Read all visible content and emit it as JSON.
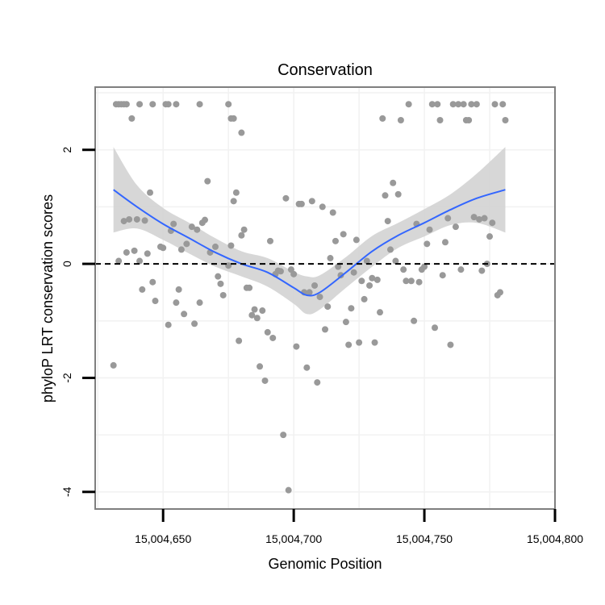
{
  "chart_data": {
    "type": "scatter",
    "title": "Conservation",
    "xlabel": "Genomic Position",
    "ylabel": "phyloP LRT conservation scores",
    "xlim": [
      15004624,
      15004800
    ],
    "ylim": [
      -4.3,
      3.1
    ],
    "x_ticks": [
      15004650,
      15004700,
      15004750,
      15004800
    ],
    "x_tick_labels": [
      "15,004,650",
      "15,004,700",
      "15,004,750",
      "15,004,800"
    ],
    "y_ticks": [
      -4,
      -2,
      0,
      2
    ],
    "y_tick_labels": [
      "-4",
      "-2",
      "0",
      "2"
    ],
    "reference_line": {
      "y": 0,
      "style": "dashed"
    },
    "legend": "none",
    "grid": true,
    "colors": {
      "points": "#999999",
      "smooth": "#3366FF",
      "ribbon": "#D3D3D3",
      "panel_border": "#7F7F7F",
      "grid": "#F2F2F2"
    },
    "points": [
      {
        "x": 15004632,
        "y": 2.8
      },
      {
        "x": 15004633,
        "y": 2.8
      },
      {
        "x": 15004634,
        "y": 2.8
      },
      {
        "x": 15004635,
        "y": 2.8
      },
      {
        "x": 15004636,
        "y": 2.8
      },
      {
        "x": 15004641,
        "y": 2.8
      },
      {
        "x": 15004646,
        "y": 2.8
      },
      {
        "x": 15004651,
        "y": 2.8
      },
      {
        "x": 15004652,
        "y": 2.8
      },
      {
        "x": 15004655,
        "y": 2.8
      },
      {
        "x": 15004664,
        "y": 2.8
      },
      {
        "x": 15004675,
        "y": 2.8
      },
      {
        "x": 15004638,
        "y": 2.55
      },
      {
        "x": 15004676,
        "y": 2.55
      },
      {
        "x": 15004677,
        "y": 2.55
      },
      {
        "x": 15004680,
        "y": 2.3
      },
      {
        "x": 15004631,
        "y": -1.78
      },
      {
        "x": 15004633,
        "y": 0.05
      },
      {
        "x": 15004635,
        "y": 0.75
      },
      {
        "x": 15004636,
        "y": 0.2
      },
      {
        "x": 15004637,
        "y": 0.78
      },
      {
        "x": 15004639,
        "y": 0.23
      },
      {
        "x": 15004640,
        "y": 0.78
      },
      {
        "x": 15004641,
        "y": 0.05
      },
      {
        "x": 15004642,
        "y": -0.45
      },
      {
        "x": 15004643,
        "y": 0.76
      },
      {
        "x": 15004644,
        "y": 0.18
      },
      {
        "x": 15004645,
        "y": 1.25
      },
      {
        "x": 15004646,
        "y": -0.32
      },
      {
        "x": 15004647,
        "y": -0.65
      },
      {
        "x": 15004649,
        "y": 0.3
      },
      {
        "x": 15004650,
        "y": 0.28
      },
      {
        "x": 15004652,
        "y": -1.07
      },
      {
        "x": 15004653,
        "y": 0.58
      },
      {
        "x": 15004654,
        "y": 0.7
      },
      {
        "x": 15004655,
        "y": -0.68
      },
      {
        "x": 15004656,
        "y": -0.45
      },
      {
        "x": 15004657,
        "y": 0.25
      },
      {
        "x": 15004658,
        "y": -0.88
      },
      {
        "x": 15004659,
        "y": 0.35
      },
      {
        "x": 15004661,
        "y": 0.65
      },
      {
        "x": 15004662,
        "y": -1.05
      },
      {
        "x": 15004663,
        "y": 0.6
      },
      {
        "x": 15004664,
        "y": -0.68
      },
      {
        "x": 15004665,
        "y": 0.72
      },
      {
        "x": 15004666,
        "y": 0.77
      },
      {
        "x": 15004667,
        "y": 1.45
      },
      {
        "x": 15004668,
        "y": 0.2
      },
      {
        "x": 15004670,
        "y": 0.3
      },
      {
        "x": 15004671,
        "y": -0.22
      },
      {
        "x": 15004672,
        "y": -0.35
      },
      {
        "x": 15004673,
        "y": -0.55
      },
      {
        "x": 15004675,
        "y": -0.03
      },
      {
        "x": 15004676,
        "y": 0.32
      },
      {
        "x": 15004677,
        "y": 1.1
      },
      {
        "x": 15004678,
        "y": 1.25
      },
      {
        "x": 15004679,
        "y": -1.35
      },
      {
        "x": 15004680,
        "y": 0.5
      },
      {
        "x": 15004681,
        "y": 0.6
      },
      {
        "x": 15004682,
        "y": -0.42
      },
      {
        "x": 15004683,
        "y": -0.42
      },
      {
        "x": 15004684,
        "y": -0.9
      },
      {
        "x": 15004685,
        "y": -0.8
      },
      {
        "x": 15004686,
        "y": -0.95
      },
      {
        "x": 15004687,
        "y": -1.8
      },
      {
        "x": 15004688,
        "y": -0.82
      },
      {
        "x": 15004689,
        "y": -2.05
      },
      {
        "x": 15004690,
        "y": -1.2
      },
      {
        "x": 15004691,
        "y": 0.4
      },
      {
        "x": 15004692,
        "y": -1.3
      },
      {
        "x": 15004693,
        "y": -0.18
      },
      {
        "x": 15004694,
        "y": -0.12
      },
      {
        "x": 15004695,
        "y": -0.13
      },
      {
        "x": 15004696,
        "y": -3.0
      },
      {
        "x": 15004697,
        "y": 1.15
      },
      {
        "x": 15004698,
        "y": -3.97
      },
      {
        "x": 15004699,
        "y": -0.1
      },
      {
        "x": 15004700,
        "y": -0.18
      },
      {
        "x": 15004701,
        "y": -1.45
      },
      {
        "x": 15004702,
        "y": 1.05
      },
      {
        "x": 15004703,
        "y": 1.05
      },
      {
        "x": 15004704,
        "y": -0.5
      },
      {
        "x": 15004705,
        "y": -1.82
      },
      {
        "x": 15004706,
        "y": -0.5
      },
      {
        "x": 15004707,
        "y": 1.1
      },
      {
        "x": 15004708,
        "y": -0.38
      },
      {
        "x": 15004709,
        "y": -2.08
      },
      {
        "x": 15004710,
        "y": -0.58
      },
      {
        "x": 15004711,
        "y": 1.0
      },
      {
        "x": 15004712,
        "y": -1.15
      },
      {
        "x": 15004713,
        "y": -0.75
      },
      {
        "x": 15004714,
        "y": 0.1
      },
      {
        "x": 15004715,
        "y": 0.9
      },
      {
        "x": 15004716,
        "y": 0.4
      },
      {
        "x": 15004717,
        "y": -0.05
      },
      {
        "x": 15004718,
        "y": -0.2
      },
      {
        "x": 15004719,
        "y": 0.52
      },
      {
        "x": 15004720,
        "y": -1.02
      },
      {
        "x": 15004721,
        "y": -1.42
      },
      {
        "x": 15004722,
        "y": -0.78
      },
      {
        "x": 15004723,
        "y": -0.15
      },
      {
        "x": 15004724,
        "y": 0.42
      },
      {
        "x": 15004725,
        "y": -1.38
      },
      {
        "x": 15004726,
        "y": -0.3
      },
      {
        "x": 15004727,
        "y": -0.62
      },
      {
        "x": 15004728,
        "y": 0.05
      },
      {
        "x": 15004729,
        "y": -0.38
      },
      {
        "x": 15004730,
        "y": -0.25
      },
      {
        "x": 15004731,
        "y": -1.38
      },
      {
        "x": 15004732,
        "y": -0.28
      },
      {
        "x": 15004733,
        "y": -0.85
      },
      {
        "x": 15004734,
        "y": 2.55
      },
      {
        "x": 15004735,
        "y": 1.2
      },
      {
        "x": 15004736,
        "y": 0.75
      },
      {
        "x": 15004737,
        "y": 0.25
      },
      {
        "x": 15004738,
        "y": 1.42
      },
      {
        "x": 15004739,
        "y": 0.05
      },
      {
        "x": 15004740,
        "y": 1.22
      },
      {
        "x": 15004741,
        "y": 2.52
      },
      {
        "x": 15004742,
        "y": -0.1
      },
      {
        "x": 15004743,
        "y": -0.3
      },
      {
        "x": 15004744,
        "y": 2.8
      },
      {
        "x": 15004745,
        "y": -0.3
      },
      {
        "x": 15004746,
        "y": -1.0
      },
      {
        "x": 15004747,
        "y": 0.7
      },
      {
        "x": 15004748,
        "y": -0.32
      },
      {
        "x": 15004749,
        "y": -0.1
      },
      {
        "x": 15004750,
        "y": -0.05
      },
      {
        "x": 15004751,
        "y": 0.35
      },
      {
        "x": 15004752,
        "y": 0.6
      },
      {
        "x": 15004753,
        "y": 2.8
      },
      {
        "x": 15004754,
        "y": -1.12
      },
      {
        "x": 15004755,
        "y": 2.8
      },
      {
        "x": 15004756,
        "y": 2.52
      },
      {
        "x": 15004757,
        "y": -0.2
      },
      {
        "x": 15004758,
        "y": 0.38
      },
      {
        "x": 15004759,
        "y": 0.8
      },
      {
        "x": 15004760,
        "y": -1.42
      },
      {
        "x": 15004761,
        "y": 2.8
      },
      {
        "x": 15004762,
        "y": 0.65
      },
      {
        "x": 15004763,
        "y": 2.8
      },
      {
        "x": 15004764,
        "y": -0.1
      },
      {
        "x": 15004765,
        "y": 2.8
      },
      {
        "x": 15004766,
        "y": 2.52
      },
      {
        "x": 15004767,
        "y": 2.52
      },
      {
        "x": 15004768,
        "y": 2.8
      },
      {
        "x": 15004769,
        "y": 0.82
      },
      {
        "x": 15004770,
        "y": 2.8
      },
      {
        "x": 15004771,
        "y": 0.78
      },
      {
        "x": 15004772,
        "y": -0.12
      },
      {
        "x": 15004773,
        "y": 0.8
      },
      {
        "x": 15004774,
        "y": 0.0
      },
      {
        "x": 15004775,
        "y": 0.48
      },
      {
        "x": 15004776,
        "y": 0.72
      },
      {
        "x": 15004777,
        "y": 2.8
      },
      {
        "x": 15004778,
        "y": -0.55
      },
      {
        "x": 15004779,
        "y": -0.5
      },
      {
        "x": 15004780,
        "y": 2.8
      },
      {
        "x": 15004781,
        "y": 2.52
      }
    ],
    "smooth": {
      "method": "loess",
      "x": [
        15004631,
        15004640,
        15004650,
        15004660,
        15004670,
        15004680,
        15004690,
        15004700,
        15004705,
        15004710,
        15004720,
        15004730,
        15004740,
        15004750,
        15004760,
        15004770,
        15004781
      ],
      "y": [
        1.3,
        1.0,
        0.7,
        0.45,
        0.2,
        0.0,
        -0.15,
        -0.42,
        -0.55,
        -0.5,
        -0.15,
        0.22,
        0.5,
        0.72,
        0.95,
        1.15,
        1.3
      ],
      "lower": [
        0.55,
        0.62,
        0.42,
        0.18,
        -0.05,
        -0.22,
        -0.4,
        -0.7,
        -0.88,
        -0.8,
        -0.42,
        -0.05,
        0.28,
        0.48,
        0.68,
        0.72,
        0.55
      ],
      "upper": [
        2.05,
        1.38,
        0.98,
        0.72,
        0.45,
        0.22,
        0.1,
        -0.14,
        -0.22,
        -0.2,
        0.12,
        0.49,
        0.72,
        0.96,
        1.22,
        1.58,
        2.05
      ]
    }
  }
}
